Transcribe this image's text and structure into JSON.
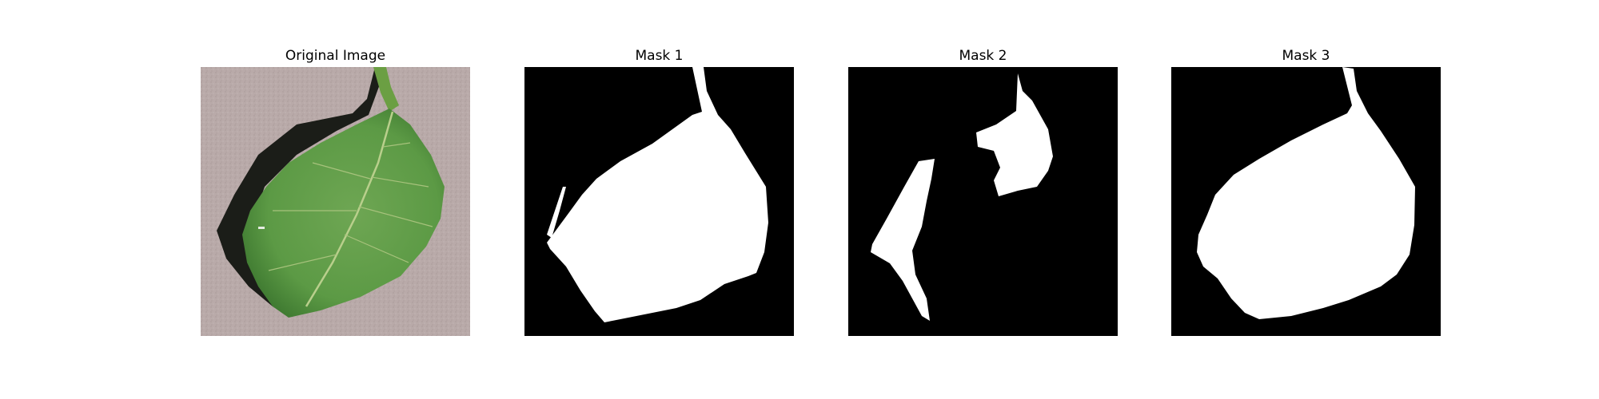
{
  "figure": {
    "panels": [
      {
        "title": "Original Image",
        "kind": "photo",
        "subject": "leaf-photo"
      },
      {
        "title": "Mask 1",
        "kind": "mask"
      },
      {
        "title": "Mask 2",
        "kind": "mask"
      },
      {
        "title": "Mask 3",
        "kind": "mask"
      }
    ]
  },
  "colors": {
    "background": "#ffffff",
    "mask_background": "#000000",
    "mask_foreground": "#ffffff",
    "leaf_green": "#5c9a45",
    "leaf_dark_green": "#3f7a31",
    "leaf_vein": "#b9cf8c",
    "surface": "#b9aaa9",
    "shadow": "#1b1d18"
  }
}
